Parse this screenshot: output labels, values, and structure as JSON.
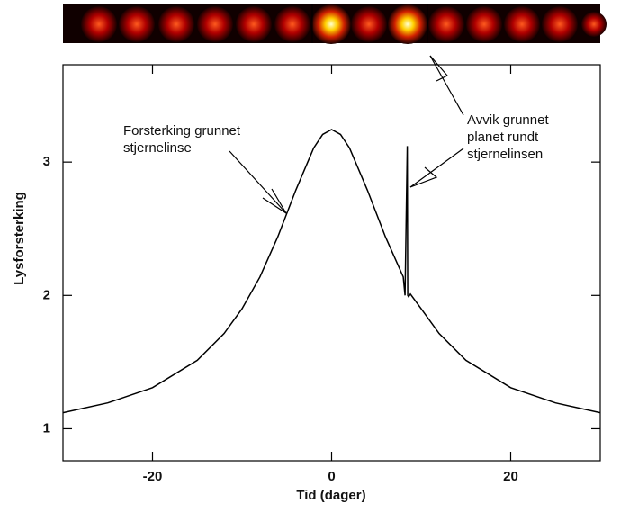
{
  "chart_data": {
    "type": "line",
    "xlabel": "Tid (dager)",
    "ylabel": "Lysforsterking",
    "x": [
      -30,
      -25,
      -20,
      -15,
      -12,
      -10,
      -8,
      -6,
      -4,
      -2,
      -1,
      0,
      1,
      2,
      4,
      6,
      8,
      8.2,
      8.45,
      8.5,
      8.6,
      8.8,
      10,
      12,
      15,
      20,
      25,
      30
    ],
    "series": [
      {
        "color": "#000000",
        "values": [
          1.12,
          1.194,
          1.308,
          1.513,
          1.715,
          1.9,
          2.139,
          2.441,
          2.789,
          3.106,
          3.207,
          3.244,
          3.207,
          3.106,
          2.789,
          2.441,
          2.139,
          2.0,
          3.12,
          2.0,
          1.99,
          2.01,
          1.9,
          1.715,
          1.513,
          1.308,
          1.194,
          1.12
        ]
      }
    ],
    "xlim": [
      -30,
      30
    ],
    "ylim": [
      0.76,
      3.73
    ],
    "xticks": [
      -20,
      0,
      20
    ],
    "yticks": [
      1,
      2,
      3
    ],
    "annotations": [
      {
        "lines": [
          "Forsterking grunnet",
          "stjernelinse"
        ]
      },
      {
        "lines": [
          "Avvik grunnet",
          "planet rundt",
          "stjernelinsen"
        ]
      }
    ]
  }
}
